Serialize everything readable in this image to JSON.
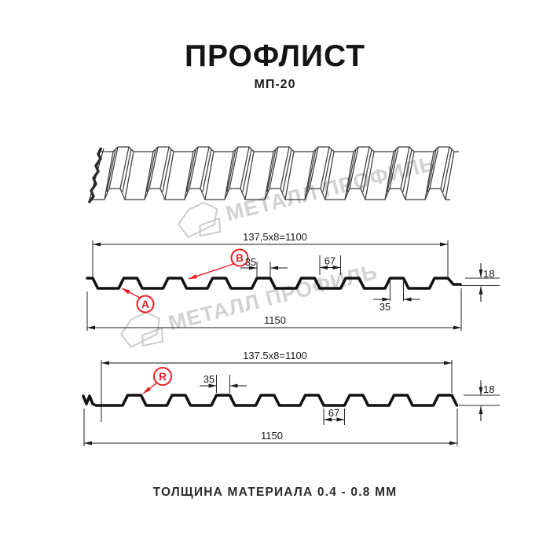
{
  "header": {
    "title": "ПРОФЛИСТ",
    "subtitle": "МП-20"
  },
  "footer": {
    "text": "ТОЛЩИНА МАТЕРИАЛА 0.4 - 0.8 ММ"
  },
  "watermark": {
    "text": "МЕТАЛЛ ПРОФИЛЬ"
  },
  "colors": {
    "accent_red": "#ec1c24",
    "line": "#1a1a1a",
    "watermark_gray": "#d2d2d2",
    "profile_black": "#111111"
  },
  "section_top": {
    "label_a": "А",
    "label_b": "В",
    "dims": {
      "module": "137,5x8=1100",
      "rib_top_width": "35",
      "valley_width": "67",
      "height": "18",
      "rib_bottom_width": "35",
      "total_width": "1150"
    }
  },
  "section_bottom": {
    "label_r": "R",
    "dims": {
      "module": "137.5x8=1100",
      "rib_top_width": "35",
      "valley_width": "67",
      "height": "18",
      "total_width": "1150"
    }
  }
}
